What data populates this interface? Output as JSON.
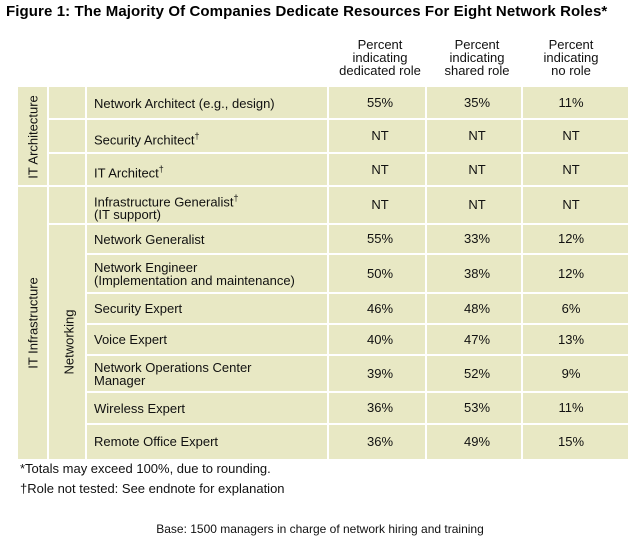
{
  "chart_data": {
    "type": "table",
    "title": "Figure 1: The Majority Of Companies Dedicate Resources For Eight Network Roles*",
    "columns": [
      "Percent indicating dedicated role",
      "Percent indicating shared role",
      "Percent indicating no role"
    ],
    "groups": [
      {
        "name": "IT Architecture",
        "start_row": 0,
        "end_row": 2
      },
      {
        "name": "IT Infrastructure",
        "start_row": 3,
        "end_row": 10
      },
      {
        "name": "Networking",
        "start_row": 4,
        "end_row": 10
      }
    ],
    "rows": [
      {
        "role": "Network Architect (e.g., design)",
        "values": [
          "55%",
          "35%",
          "11%"
        ]
      },
      {
        "role": "Security Architect†",
        "values": [
          "NT",
          "NT",
          "NT"
        ]
      },
      {
        "role": "IT Architect†",
        "values": [
          "NT",
          "NT",
          "NT"
        ]
      },
      {
        "role": "Infrastructure Generalist†\n(IT support)",
        "values": [
          "NT",
          "NT",
          "NT"
        ]
      },
      {
        "role": "Network Generalist",
        "values": [
          "55%",
          "33%",
          "12%"
        ]
      },
      {
        "role": "Network Engineer\n(Implementation and maintenance)",
        "values": [
          "50%",
          "38%",
          "12%"
        ]
      },
      {
        "role": "Security Expert",
        "values": [
          "46%",
          "48%",
          "6%"
        ]
      },
      {
        "role": "Voice Expert",
        "values": [
          "40%",
          "47%",
          "13%"
        ]
      },
      {
        "role": "Network Operations Center\nManager",
        "values": [
          "39%",
          "52%",
          "9%"
        ]
      },
      {
        "role": "Wireless Expert",
        "values": [
          "36%",
          "53%",
          "11%"
        ]
      },
      {
        "role": "Remote Office Expert",
        "values": [
          "36%",
          "49%",
          "15%"
        ]
      }
    ]
  },
  "notes": {
    "totals": "*Totals may exceed 100%, due to rounding.",
    "not_tested": "†Role not tested: See endnote for explanation",
    "base": "Base: 1500 managers in charge of network hiring and training"
  }
}
